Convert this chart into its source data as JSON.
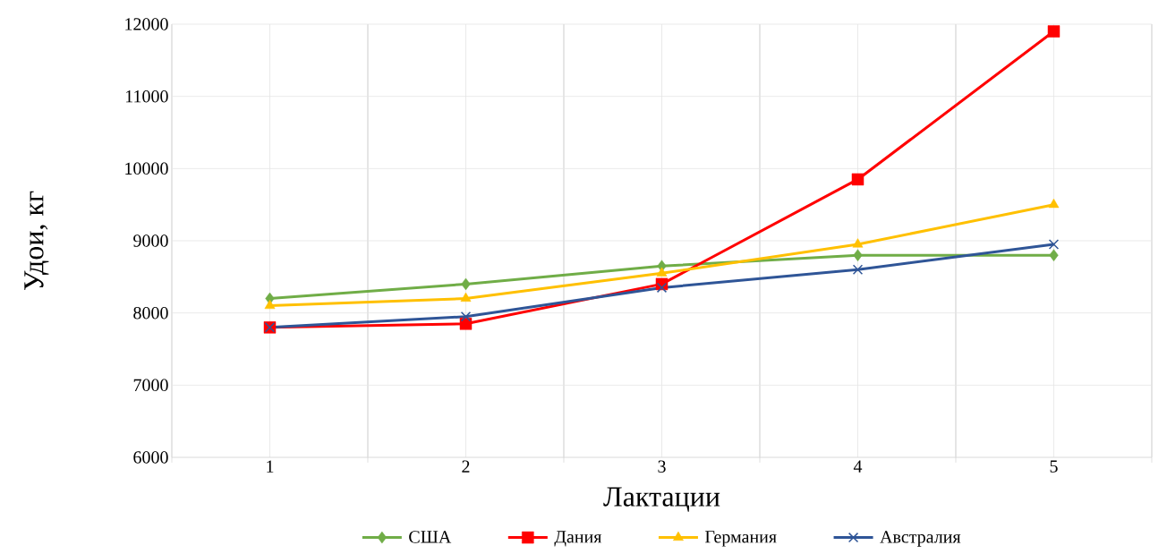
{
  "chart_data": {
    "type": "line",
    "xlabel": "Лактации",
    "ylabel": "Удои, кг",
    "categories": [
      "1",
      "2",
      "3",
      "4",
      "5"
    ],
    "ylim": [
      6000,
      12000
    ],
    "yticks": [
      6000,
      7000,
      8000,
      9000,
      10000,
      11000,
      12000
    ],
    "grid": true,
    "legend": "bottom",
    "line_style": "solid",
    "series": [
      {
        "name": "США",
        "color": "#70ad47",
        "marker": "diamond",
        "values": [
          8200,
          8400,
          8650,
          8800,
          8800
        ]
      },
      {
        "name": "Дания",
        "color": "#ff0000",
        "marker": "square",
        "values": [
          7800,
          7850,
          8400,
          9850,
          11900
        ]
      },
      {
        "name": "Германия",
        "color": "#ffc000",
        "marker": "triangle",
        "values": [
          8100,
          8200,
          8550,
          8950,
          9500
        ]
      },
      {
        "name": "Австралия",
        "color": "#2f5597",
        "marker": "cross",
        "values": [
          7800,
          7950,
          8350,
          8600,
          8950
        ]
      }
    ]
  }
}
